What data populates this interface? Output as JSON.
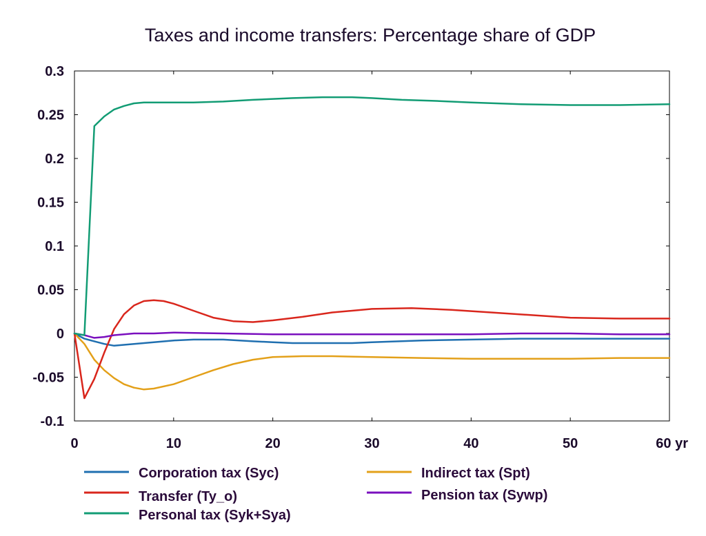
{
  "chart_data": {
    "type": "line",
    "title": "Taxes and income transfers: Percentage share of GDP",
    "xlabel": "",
    "ylabel": "",
    "x_unit_label": "yr",
    "xlim": [
      0,
      60
    ],
    "ylim": [
      -0.1,
      0.3
    ],
    "xticks": [
      0,
      10,
      20,
      30,
      40,
      50,
      60
    ],
    "xtick_labels": [
      "0",
      "10",
      "20",
      "30",
      "40",
      "50",
      "60 yr"
    ],
    "yticks": [
      -0.1,
      -0.05,
      0,
      0.05,
      0.1,
      0.15,
      0.2,
      0.25,
      0.3
    ],
    "ytick_labels": [
      "-0.1",
      "-0.05",
      "0",
      "0.05",
      "0.1",
      "0.15",
      "0.2",
      "0.25",
      "0.3"
    ],
    "grid": false,
    "legend_position": "bottom",
    "series": [
      {
        "name": "Corporation tax (Syc)",
        "color": "#1f6fb0",
        "x": [
          0,
          1,
          2,
          3,
          4,
          5,
          6,
          8,
          10,
          12,
          15,
          18,
          20,
          22,
          25,
          28,
          30,
          35,
          40,
          45,
          50,
          55,
          60
        ],
        "y": [
          0,
          -0.006,
          -0.009,
          -0.012,
          -0.014,
          -0.013,
          -0.012,
          -0.01,
          -0.008,
          -0.007,
          -0.007,
          -0.009,
          -0.01,
          -0.011,
          -0.011,
          -0.011,
          -0.01,
          -0.008,
          -0.007,
          -0.006,
          -0.006,
          -0.006,
          -0.006
        ]
      },
      {
        "name": "Indirect tax (Spt)",
        "color": "#e3a019",
        "x": [
          0,
          1,
          2,
          3,
          4,
          5,
          6,
          7,
          8,
          10,
          12,
          14,
          16,
          18,
          20,
          23,
          26,
          30,
          35,
          40,
          45,
          50,
          55,
          60
        ],
        "y": [
          0,
          -0.012,
          -0.03,
          -0.042,
          -0.051,
          -0.058,
          -0.062,
          -0.064,
          -0.063,
          -0.058,
          -0.05,
          -0.042,
          -0.035,
          -0.03,
          -0.027,
          -0.026,
          -0.026,
          -0.027,
          -0.028,
          -0.029,
          -0.029,
          -0.029,
          -0.028,
          -0.028
        ]
      },
      {
        "name": "Transfer (Ty_o)",
        "color": "#d9261c",
        "x": [
          0,
          1,
          2,
          3,
          4,
          5,
          6,
          7,
          8,
          9,
          10,
          12,
          14,
          16,
          18,
          20,
          23,
          26,
          30,
          34,
          38,
          42,
          46,
          50,
          55,
          60
        ],
        "y": [
          0,
          -0.074,
          -0.052,
          -0.022,
          0.005,
          0.022,
          0.032,
          0.037,
          0.038,
          0.037,
          0.034,
          0.026,
          0.018,
          0.014,
          0.013,
          0.015,
          0.019,
          0.024,
          0.028,
          0.029,
          0.027,
          0.024,
          0.021,
          0.018,
          0.017,
          0.017
        ]
      },
      {
        "name": "Pension tax (Sywp)",
        "color": "#7a0fbe",
        "x": [
          0,
          1,
          2,
          3,
          4,
          5,
          6,
          8,
          10,
          15,
          20,
          25,
          30,
          35,
          40,
          45,
          50,
          55,
          60
        ],
        "y": [
          0,
          -0.002,
          -0.005,
          -0.004,
          -0.002,
          -0.001,
          0,
          0,
          0.001,
          0,
          -0.001,
          -0.001,
          -0.001,
          -0.001,
          -0.001,
          0,
          0,
          -0.001,
          -0.001
        ]
      },
      {
        "name": "Personal tax (Syk+Sya)",
        "color": "#129c74",
        "x": [
          0,
          1,
          2,
          3,
          4,
          5,
          6,
          7,
          8,
          10,
          12,
          15,
          18,
          20,
          22,
          25,
          28,
          30,
          33,
          36,
          40,
          45,
          50,
          55,
          60
        ],
        "y": [
          0,
          -0.002,
          0.237,
          0.248,
          0.256,
          0.26,
          0.263,
          0.264,
          0.264,
          0.264,
          0.264,
          0.265,
          0.267,
          0.268,
          0.269,
          0.27,
          0.27,
          0.269,
          0.267,
          0.266,
          0.264,
          0.262,
          0.261,
          0.261,
          0.262
        ]
      }
    ]
  }
}
